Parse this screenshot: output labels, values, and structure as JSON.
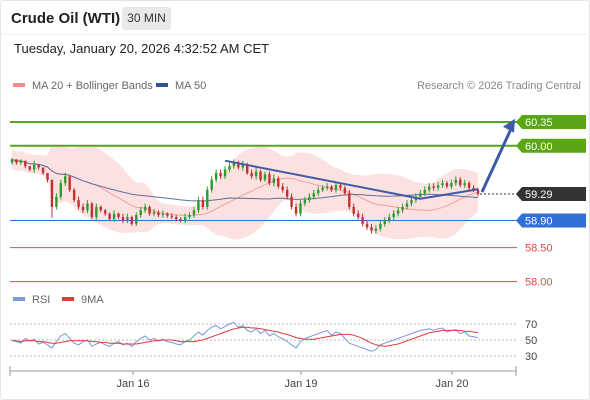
{
  "header": {
    "title": "Crude Oil (WTI)",
    "timeframe": "30 MIN",
    "timestamp": "Tuesday, January 20, 2026 4:32:52 AM CET"
  },
  "legend": {
    "items": [
      {
        "label": "MA 20 + Bollinger Bands",
        "color": "#f08c8c"
      },
      {
        "label": "MA 50",
        "color": "#2f5597"
      }
    ],
    "credit": "Research © 2026 Trading Central"
  },
  "colors": {
    "up": "#2f9a2f",
    "down": "#c43030",
    "ma20": "#f0a0a0",
    "band_fill": "#fbdcdc",
    "ma50": "#5a6f9e",
    "green_level": "#5aa614",
    "blue_level": "#2f6fd6",
    "red_level": "#e04848",
    "current": "#333333",
    "trendline": "#3f5aa6",
    "rsi": "#7a98dc",
    "rsi_ma": "#e03a3a"
  },
  "chart_data": [
    {
      "type": "candlestick",
      "title": "",
      "x_ticks": [
        "Jan 16",
        "Jan 19",
        "Jan 20"
      ],
      "ylim": [
        57.95,
        60.6
      ],
      "price_levels": [
        {
          "value": 60.35,
          "label": "60.35",
          "kind": "resistance"
        },
        {
          "value": 60.0,
          "label": "60.00",
          "kind": "resistance"
        },
        {
          "value": 59.29,
          "label": "59.29",
          "kind": "current"
        },
        {
          "value": 58.9,
          "label": "58.90",
          "kind": "pivot"
        },
        {
          "value": 58.5,
          "label": "58.50",
          "kind": "support"
        },
        {
          "value": 58.0,
          "label": "58.00",
          "kind": "support"
        }
      ],
      "close": [
        59.8,
        59.75,
        59.78,
        59.7,
        59.65,
        59.72,
        59.68,
        59.6,
        59.5,
        59.1,
        59.25,
        59.45,
        59.55,
        59.35,
        59.2,
        59.1,
        59.05,
        59.15,
        58.95,
        59.1,
        59.05,
        59.0,
        58.92,
        59.0,
        58.95,
        58.9,
        58.95,
        58.85,
        58.98,
        59.05,
        59.1,
        59.0,
        59.02,
        58.98,
        59.0,
        58.97,
        58.95,
        58.92,
        58.9,
        58.95,
        58.98,
        59.05,
        59.2,
        59.1,
        59.35,
        59.5,
        59.6,
        59.55,
        59.65,
        59.7,
        59.75,
        59.68,
        59.72,
        59.6,
        59.55,
        59.62,
        59.5,
        59.58,
        59.45,
        59.52,
        59.4,
        59.35,
        59.25,
        59.1,
        59.0,
        59.15,
        59.2,
        59.25,
        59.3,
        59.35,
        59.38,
        59.4,
        59.35,
        59.42,
        59.38,
        59.3,
        59.1,
        59.0,
        58.95,
        58.85,
        58.8,
        58.75,
        58.78,
        58.85,
        58.9,
        58.95,
        59.0,
        59.05,
        59.1,
        59.15,
        59.2,
        59.25,
        59.3,
        59.35,
        59.4,
        59.38,
        59.42,
        59.45,
        59.4,
        59.45,
        59.5,
        59.42,
        59.45,
        59.38,
        59.35,
        59.29
      ],
      "high_extremes": [
        59.82,
        59.8,
        59.8,
        59.75,
        59.7,
        59.78,
        59.72,
        59.65,
        59.55,
        59.3,
        59.3,
        59.5,
        59.6,
        59.55,
        59.38,
        59.25,
        59.15,
        59.2,
        59.17,
        59.15,
        59.12,
        59.07,
        59.02,
        59.05,
        59.02,
        59.0,
        59.0,
        58.97,
        59.02,
        59.1,
        59.15,
        59.12,
        59.07,
        59.05,
        59.05,
        59.02,
        59.0,
        58.98,
        58.95,
        59.0,
        59.02,
        59.1,
        59.25,
        59.25,
        59.4,
        59.55,
        59.65,
        59.65,
        59.7,
        59.75,
        59.8,
        59.78,
        59.78,
        59.75,
        59.65,
        59.68,
        59.65,
        59.62,
        59.62,
        59.58,
        59.55,
        59.45,
        59.4,
        59.3,
        59.15,
        59.2,
        59.25,
        59.3,
        59.35,
        59.4,
        59.42,
        59.45,
        59.42,
        59.47,
        59.46,
        59.41,
        59.35,
        59.15,
        59.05,
        59.0,
        58.9,
        58.85,
        58.83,
        58.9,
        58.95,
        59.0,
        59.05,
        59.1,
        59.15,
        59.2,
        59.25,
        59.3,
        59.35,
        59.4,
        59.45,
        59.45,
        59.47,
        59.5,
        59.48,
        59.5,
        59.55,
        59.54,
        59.5,
        59.48,
        59.42,
        59.38
      ]
    },
    {
      "type": "line",
      "title": "",
      "ylim": [
        20,
        80
      ],
      "y_ticks": [
        70,
        50,
        30
      ],
      "series": [
        {
          "name": "RSI",
          "values": [
            50,
            48,
            46,
            52,
            49,
            51,
            45,
            47,
            44,
            40,
            48,
            55,
            58,
            52,
            46,
            44,
            48,
            50,
            42,
            45,
            47,
            44,
            42,
            46,
            48,
            44,
            46,
            42,
            48,
            52,
            55,
            50,
            52,
            49,
            51,
            48,
            47,
            45,
            44,
            48,
            50,
            55,
            60,
            56,
            62,
            66,
            68,
            64,
            67,
            70,
            72,
            66,
            68,
            62,
            60,
            64,
            58,
            62,
            55,
            58,
            54,
            52,
            48,
            44,
            40,
            48,
            52,
            54,
            56,
            58,
            60,
            62,
            56,
            60,
            58,
            52,
            46,
            44,
            42,
            40,
            38,
            36,
            38,
            44,
            46,
            48,
            50,
            52,
            54,
            56,
            58,
            60,
            62,
            63,
            64,
            62,
            64,
            65,
            60,
            62,
            63,
            58,
            60,
            55,
            54,
            53
          ]
        },
        {
          "name": "9MA",
          "values": [
            49,
            49,
            48,
            49,
            49,
            49,
            48,
            48,
            47,
            46,
            46,
            47,
            48,
            49,
            49,
            49,
            49,
            49,
            48,
            48,
            47,
            47,
            46,
            46,
            46,
            45,
            45,
            45,
            45,
            46,
            47,
            48,
            49,
            49,
            50,
            50,
            50,
            49,
            48,
            48,
            48,
            48,
            49,
            50,
            52,
            54,
            56,
            58,
            60,
            62,
            64,
            65,
            66,
            66,
            65,
            65,
            64,
            63,
            62,
            61,
            60,
            58,
            57,
            55,
            53,
            52,
            51,
            51,
            51,
            52,
            53,
            54,
            55,
            56,
            57,
            57,
            57,
            56,
            54,
            52,
            49,
            46,
            44,
            43,
            42,
            43,
            44,
            45,
            47,
            49,
            51,
            53,
            55,
            57,
            59,
            60,
            61,
            62,
            62,
            62,
            62,
            62,
            61,
            61,
            60,
            59
          ]
        }
      ]
    }
  ]
}
